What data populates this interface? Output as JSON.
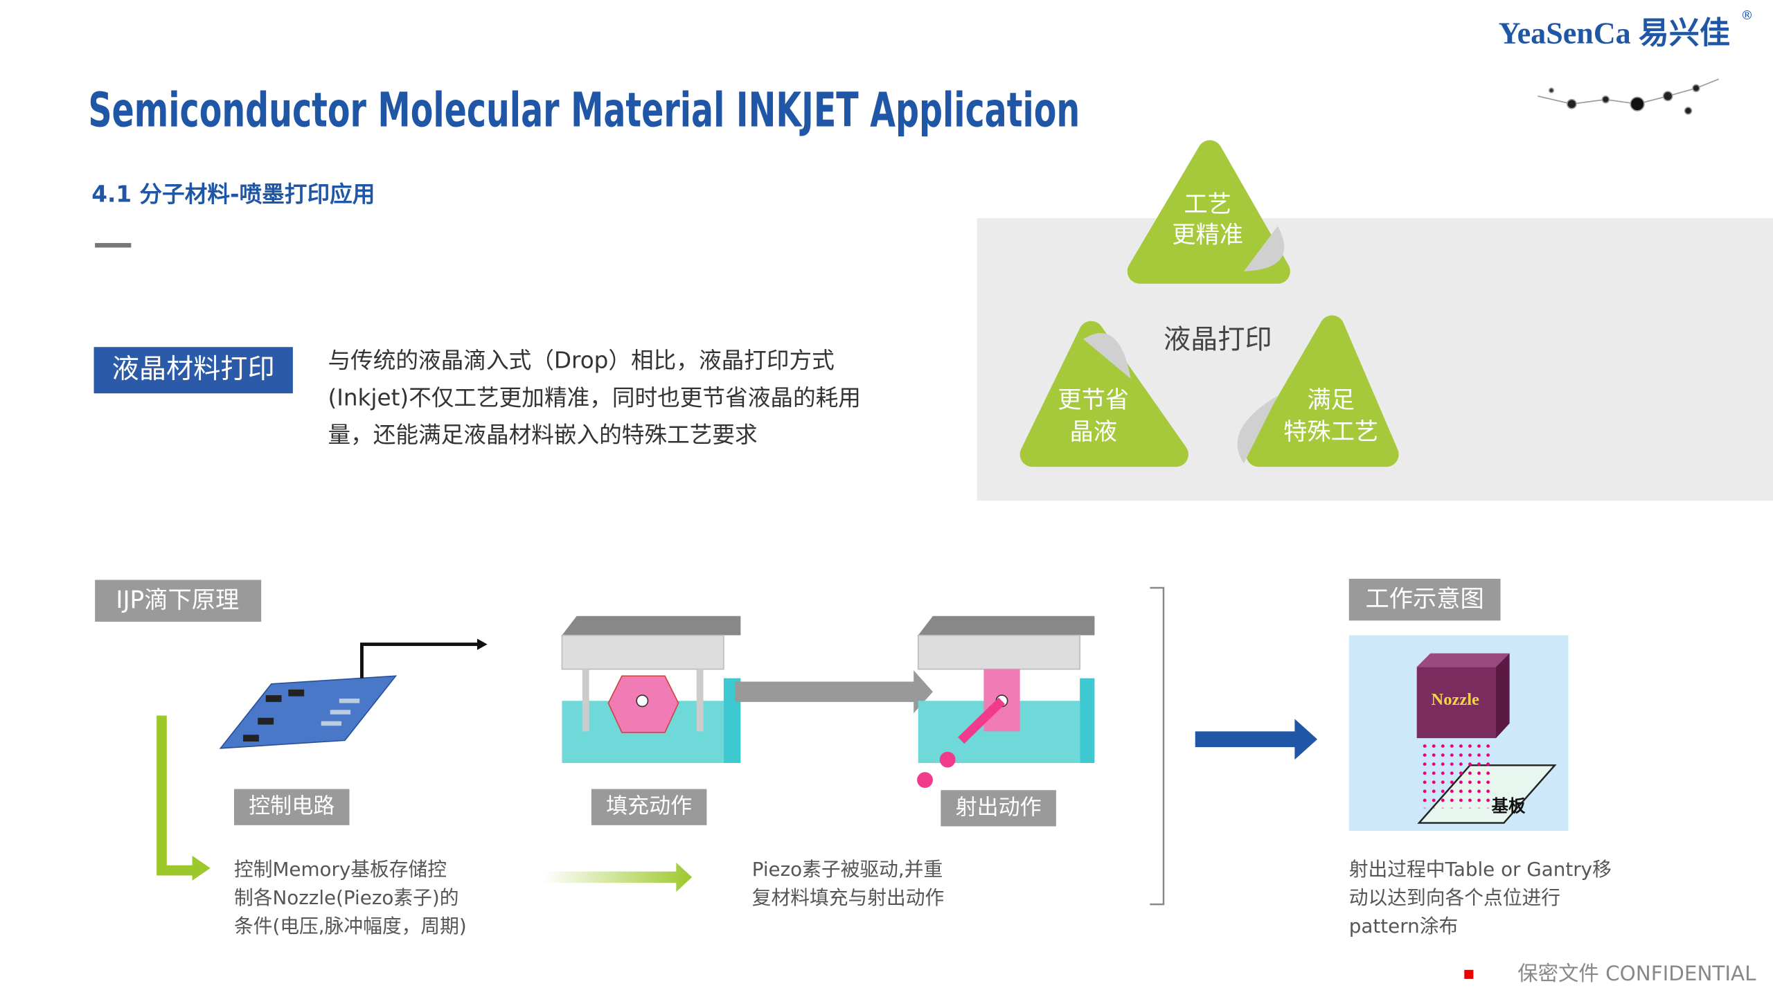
{
  "brand": {
    "name": "YeaSenCa 易兴佳",
    "mark": "®"
  },
  "header": {
    "title": "Semiconductor Molecular Material INKJET Application",
    "subtitle": "4.1 分子材料-喷墨打印应用"
  },
  "lcd_printing": {
    "label": "液晶材料打印",
    "description": [
      "与传统的液晶滴入式（Drop）相比，液晶打印方式",
      "(Inkjet)不仅工艺更加精准，同时也更节省液晶的耗用",
      "量，还能满足液晶材料嵌入的特殊工艺要求"
    ]
  },
  "diagram": {
    "center": "液晶打印",
    "petals": [
      [
        "工艺",
        "更精准"
      ],
      [
        "更节省",
        "晶液"
      ],
      [
        "满足",
        "特殊工艺"
      ]
    ]
  },
  "ijp": {
    "label": "IJP滴下原理",
    "steps": [
      "控制电路",
      "填充动作",
      "射出动作"
    ],
    "descriptions": [
      [
        "控制Memory基板存储控",
        "制各Nozzle(Piezo素子)的",
        "条件(电压,脉冲幅度，周期)"
      ],
      [
        "Piezo素子被驱动,并重",
        "复材料填充与射出动作"
      ]
    ]
  },
  "work": {
    "label": "工作示意图",
    "nozzle": "Nozzle",
    "substrate": "基板",
    "description": [
      "射出过程中Table or Gantry移",
      "动以达到向各个点位进行",
      "pattern涂布"
    ]
  },
  "footer": "保密文件 CONFIDENTIAL"
}
